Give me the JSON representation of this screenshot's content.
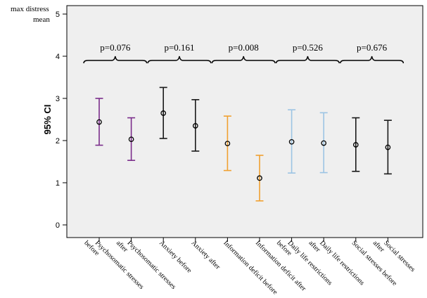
{
  "chart_data": {
    "type": "errorbar",
    "title": "",
    "corner_label_line1": "max distress",
    "corner_label_line2": "mean",
    "ylabel": "95% CI",
    "xlabel": "",
    "ylim": [
      0,
      5
    ],
    "yticks": [
      0,
      1,
      2,
      3,
      4,
      5
    ],
    "grid": false,
    "categories": [
      {
        "line1": "Psychosomatic stresses",
        "line2": "before"
      },
      {
        "line1": "Psychosomatic stresses",
        "line2": "after"
      },
      {
        "line1": "Anxiety before",
        "line2": ""
      },
      {
        "line1": "Anxiety after",
        "line2": ""
      },
      {
        "line1": "Information deficit before",
        "line2": ""
      },
      {
        "line1": "Information deficit after",
        "line2": ""
      },
      {
        "line1": "Daily life restrictions",
        "line2": "before"
      },
      {
        "line1": "Daily life restrictions",
        "line2": "after"
      },
      {
        "line1": "Social stresses before",
        "line2": ""
      },
      {
        "line1": "Social stresses",
        "line2": "after"
      }
    ],
    "means": [
      2.44,
      2.03,
      2.65,
      2.35,
      1.93,
      1.11,
      1.97,
      1.94,
      1.9,
      1.84
    ],
    "ci_low": [
      1.89,
      1.53,
      2.05,
      1.75,
      1.29,
      0.57,
      1.23,
      1.24,
      1.27,
      1.21
    ],
    "ci_high": [
      3.0,
      2.54,
      3.26,
      2.97,
      2.58,
      1.65,
      2.73,
      2.66,
      2.54,
      2.48
    ],
    "colors": [
      "#7b2d8b",
      "#7b2d8b",
      "#1a1a1a",
      "#1a1a1a",
      "#f0a030",
      "#f0a030",
      "#9cc4e4",
      "#9cc4e4",
      "#1a1a1a",
      "#1a1a1a"
    ],
    "annotations": [
      {
        "label": "p=0.076",
        "pair": [
          0,
          1
        ]
      },
      {
        "label": "p=0.161",
        "pair": [
          2,
          3
        ]
      },
      {
        "label": "p=0.008",
        "pair": [
          4,
          5
        ]
      },
      {
        "label": "p=0.526",
        "pair": [
          6,
          7
        ]
      },
      {
        "label": "p=0.676",
        "pair": [
          8,
          9
        ]
      }
    ]
  }
}
